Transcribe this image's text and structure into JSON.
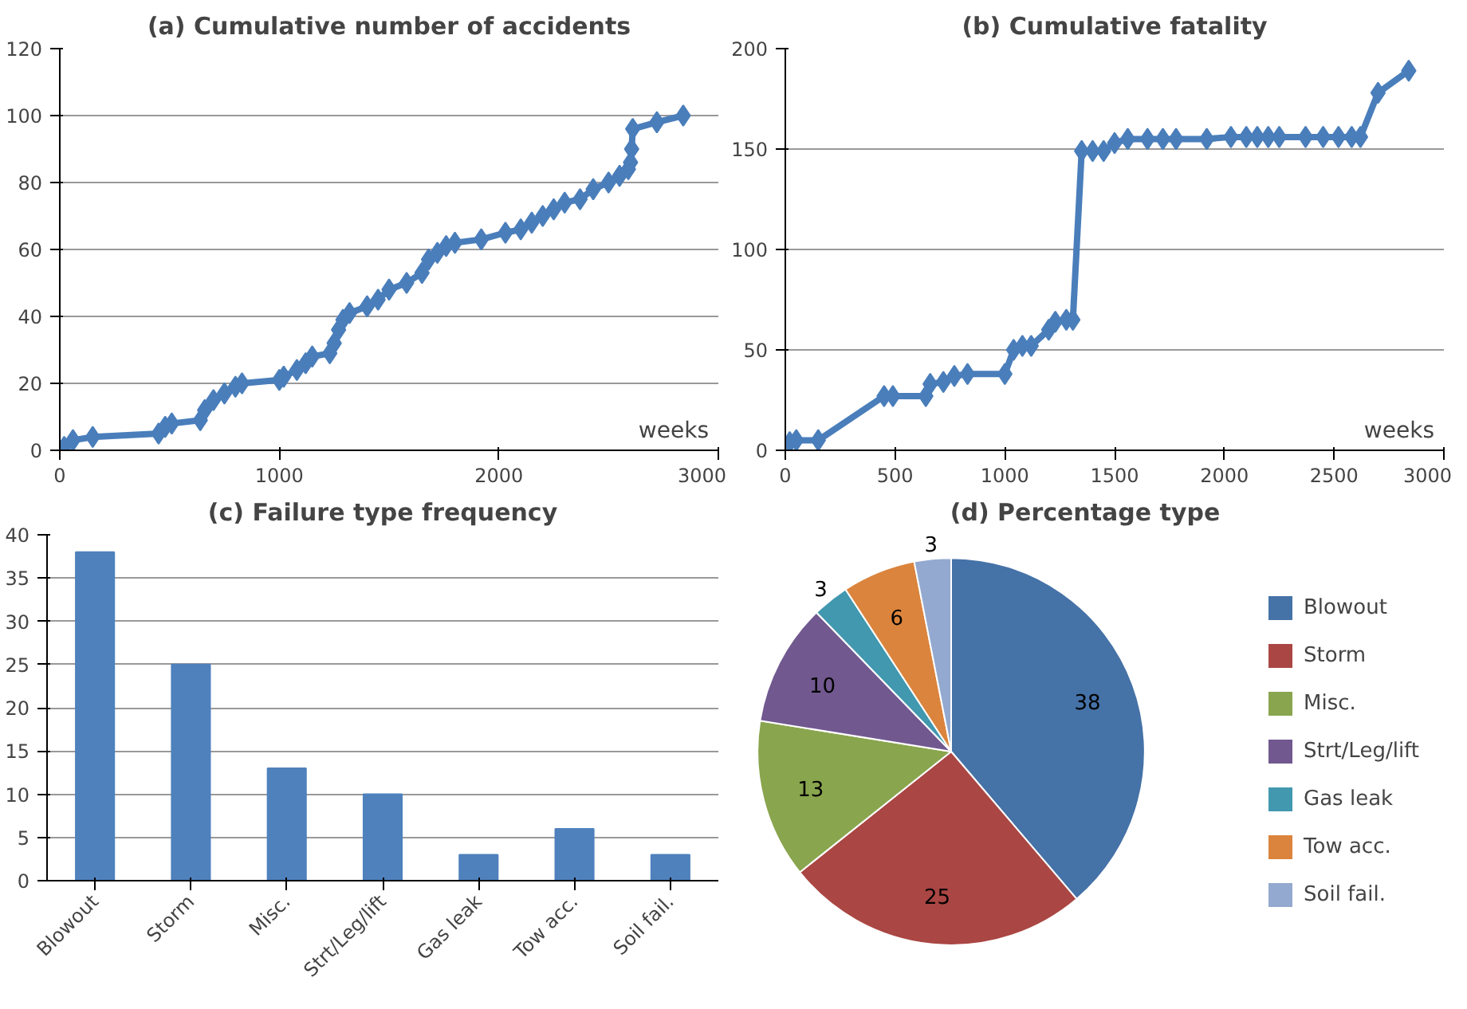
{
  "chart_data": [
    {
      "type": "line",
      "title": "(a) Cumulative number of accidents",
      "xlabel": "weeks",
      "color": "#4a7ebb",
      "marker": "diamond",
      "line_style": "solid",
      "grid": "y",
      "xlim": [
        0,
        3000
      ],
      "ylim": [
        0,
        120
      ],
      "xticks": [
        0,
        1000,
        2000,
        3000
      ],
      "yticks": [
        0,
        20,
        40,
        60,
        80,
        100,
        120
      ],
      "x": [
        20,
        60,
        150,
        450,
        480,
        510,
        640,
        660,
        700,
        750,
        800,
        830,
        1000,
        1020,
        1080,
        1120,
        1150,
        1230,
        1250,
        1270,
        1290,
        1320,
        1400,
        1450,
        1500,
        1580,
        1650,
        1680,
        1720,
        1760,
        1800,
        1920,
        2030,
        2100,
        2150,
        2200,
        2250,
        2300,
        2370,
        2430,
        2500,
        2550,
        2590,
        2600,
        2605,
        2610,
        2720,
        2840
      ],
      "values": [
        1,
        3,
        4,
        5,
        7,
        8,
        9,
        12,
        15,
        17,
        19,
        20,
        21,
        22,
        24,
        26,
        28,
        29,
        32,
        36,
        39,
        41,
        43,
        45,
        48,
        50,
        53,
        57,
        59,
        61,
        62,
        63,
        65,
        66,
        68,
        70,
        72,
        74,
        75,
        78,
        80,
        82,
        84,
        86,
        90,
        96,
        98,
        100
      ]
    },
    {
      "type": "line",
      "title": "(b) Cumulative fatality",
      "xlabel": "weeks",
      "color": "#4a7ebb",
      "marker": "diamond",
      "line_style": "solid",
      "grid": "y",
      "xlim": [
        0,
        3000
      ],
      "ylim": [
        0,
        200
      ],
      "xticks": [
        0,
        500,
        1000,
        1500,
        2000,
        2500,
        3000
      ],
      "yticks": [
        0,
        50,
        100,
        150,
        200
      ],
      "x": [
        20,
        50,
        150,
        450,
        490,
        640,
        660,
        720,
        770,
        830,
        1000,
        1040,
        1080,
        1120,
        1200,
        1230,
        1280,
        1310,
        1350,
        1400,
        1450,
        1500,
        1560,
        1650,
        1720,
        1780,
        1920,
        2030,
        2100,
        2150,
        2200,
        2250,
        2370,
        2450,
        2520,
        2580,
        2620,
        2700,
        2840
      ],
      "values": [
        4,
        5,
        5,
        27,
        27,
        27,
        33,
        34,
        37,
        38,
        38,
        50,
        52,
        52,
        60,
        64,
        65,
        65,
        149,
        149,
        149,
        153,
        155,
        155,
        155,
        155,
        155,
        156,
        156,
        156,
        156,
        156,
        156,
        156,
        156,
        156,
        156,
        178,
        189
      ]
    },
    {
      "type": "bar",
      "title": "(c) Failure type frequency",
      "color": "#4f81bd",
      "grid": "y",
      "ylim": [
        0,
        40
      ],
      "yticks": [
        0,
        5,
        10,
        15,
        20,
        25,
        30,
        35,
        40
      ],
      "categories": [
        "Blowout",
        "Storm",
        "Misc.",
        "Strt/Leg/lift",
        "Gas leak",
        "Tow acc.",
        "Soil fail."
      ],
      "values": [
        38,
        25,
        13,
        10,
        3,
        6,
        3
      ]
    },
    {
      "type": "pie",
      "title": "(d) Percentage type",
      "legend": "right",
      "data_labels": true,
      "categories": [
        "Blowout",
        "Storm",
        "Misc.",
        "Strt/Leg/lift",
        "Gas leak",
        "Tow acc.",
        "Soil fail."
      ],
      "values": [
        38,
        25,
        13,
        10,
        3,
        6,
        3
      ],
      "colors": [
        "#4572a7",
        "#aa4643",
        "#89a54e",
        "#71588f",
        "#4198af",
        "#db843d",
        "#93a9cf"
      ]
    }
  ]
}
